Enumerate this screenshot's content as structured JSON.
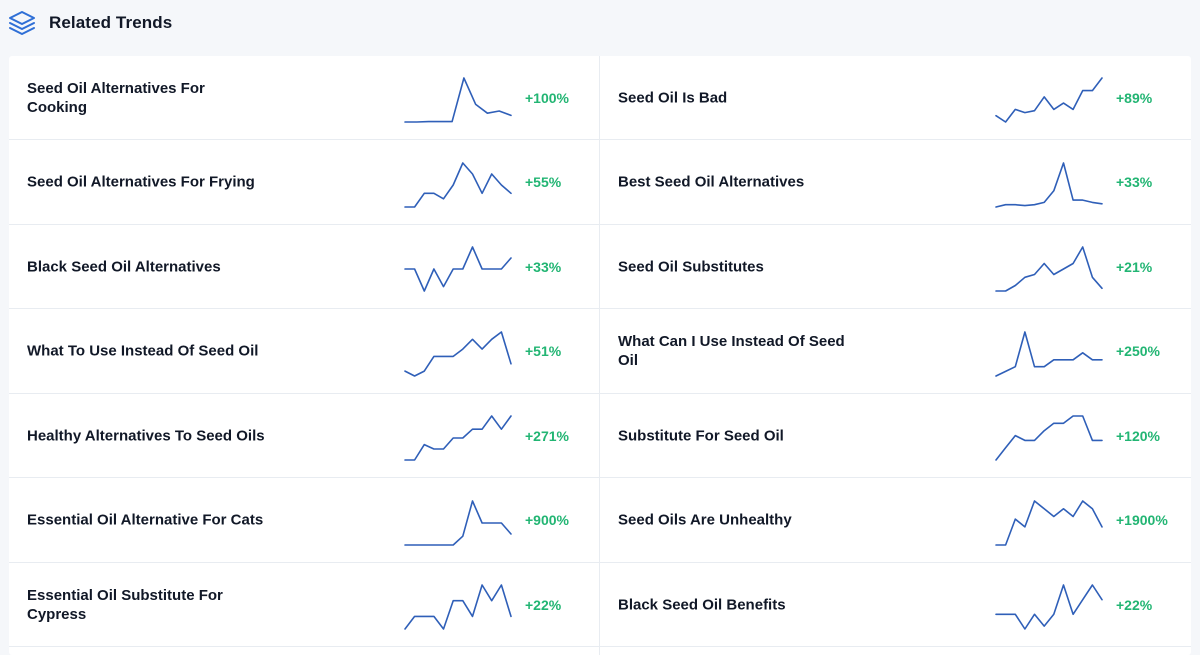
{
  "header": {
    "title": "Related Trends",
    "icon": "layers-icon",
    "accent_color": "#2f6fd6"
  },
  "colors": {
    "sparkline": "#2f5fb8",
    "growth": "#22b573"
  },
  "trends": [
    {
      "label": "Seed Oil Alternatives For Cooking",
      "growth": "+100%",
      "series": [
        0,
        0,
        1,
        1,
        1,
        100,
        40,
        20,
        25,
        15
      ]
    },
    {
      "label": "Seed Oil Is Bad",
      "growth": "+89%",
      "series": [
        30,
        20,
        40,
        35,
        38,
        60,
        40,
        50,
        40,
        70,
        70,
        90
      ]
    },
    {
      "label": "Seed Oil Alternatives For Frying",
      "growth": "+55%",
      "series": [
        0,
        0,
        25,
        25,
        15,
        40,
        80,
        60,
        25,
        60,
        40,
        25
      ]
    },
    {
      "label": "Best Seed Oil Alternatives",
      "growth": "+33%",
      "series": [
        5,
        10,
        10,
        8,
        10,
        15,
        40,
        100,
        20,
        20,
        15,
        12
      ]
    },
    {
      "label": "Black Seed Oil Alternatives",
      "growth": "+33%",
      "series": [
        50,
        50,
        0,
        50,
        10,
        50,
        50,
        100,
        50,
        50,
        50,
        75
      ]
    },
    {
      "label": "Seed Oil Substitutes",
      "growth": "+21%",
      "series": [
        5,
        5,
        15,
        30,
        35,
        55,
        35,
        45,
        55,
        85,
        30,
        10
      ]
    },
    {
      "label": "What To Use Instead Of Seed Oil",
      "growth": "+51%",
      "series": [
        20,
        10,
        20,
        50,
        50,
        50,
        65,
        85,
        65,
        85,
        100,
        35
      ]
    },
    {
      "label": "What Can I Use Instead Of Seed Oil",
      "growth": "+250%",
      "series": [
        5,
        15,
        25,
        100,
        25,
        25,
        40,
        40,
        40,
        55,
        40,
        40
      ]
    },
    {
      "label": "Healthy Alternatives To Seed Oils",
      "growth": "+271%",
      "series": [
        0,
        0,
        35,
        25,
        25,
        50,
        50,
        70,
        70,
        100,
        70,
        100
      ]
    },
    {
      "label": "Substitute For Seed Oil",
      "growth": "+120%",
      "series": [
        0,
        25,
        50,
        40,
        40,
        60,
        75,
        75,
        90,
        90,
        40,
        40
      ]
    },
    {
      "label": "Essential Oil Alternative For Cats",
      "growth": "+900%",
      "series": [
        0,
        0,
        0,
        0,
        0,
        0,
        20,
        100,
        50,
        50,
        50,
        25
      ]
    },
    {
      "label": "Seed Oils Are Unhealthy",
      "growth": "+1900%",
      "series": [
        0,
        0,
        50,
        35,
        85,
        70,
        55,
        70,
        55,
        85,
        70,
        35
      ]
    },
    {
      "label": "Essential Oil Substitute For Cypress",
      "growth": "+22%",
      "series": [
        10,
        30,
        30,
        30,
        10,
        55,
        55,
        30,
        80,
        55,
        80,
        30
      ]
    },
    {
      "label": "Black Seed Oil Benefits",
      "growth": "+22%",
      "series": [
        25,
        25,
        25,
        0,
        25,
        5,
        25,
        75,
        25,
        50,
        75,
        50
      ]
    }
  ]
}
